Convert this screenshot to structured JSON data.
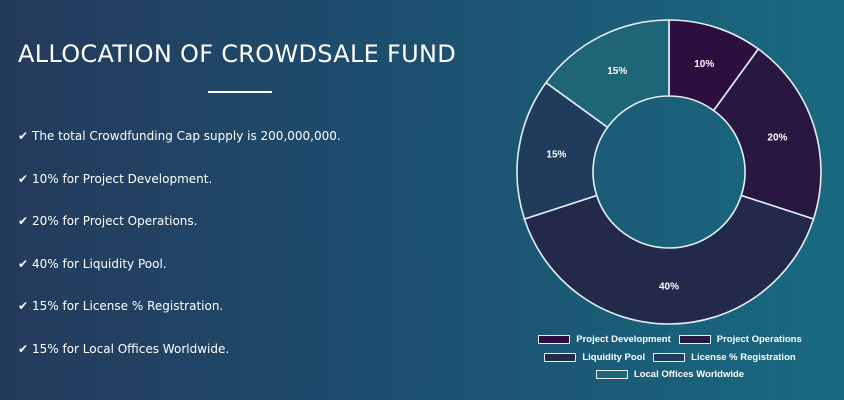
{
  "heading": "ALLOCATION OF CROWDSALE FUND",
  "bullets": [
    "The total Crowdfunding Cap supply is 200,000,000.",
    "10% for Project Development.",
    "20% for Project Operations.",
    "40% for Liquidity Pool.",
    "15% for License % Registration.",
    "15% for Local Offices Worldwide."
  ],
  "check_icon": "✔",
  "chart_data": {
    "type": "pie",
    "categories": [
      "Project Development",
      "Project Operations",
      "Liquidity Pool",
      "License % Registration",
      "Local Offices Worldwide"
    ],
    "values": [
      10,
      20,
      40,
      15,
      15
    ],
    "labels": [
      "10%",
      "20%",
      "40%",
      "15%",
      "15%"
    ],
    "colors": [
      "#2c0f3f",
      "#281740",
      "#22294a",
      "#1f3c5c",
      "#1d6577"
    ],
    "legend_position": "bottom"
  }
}
